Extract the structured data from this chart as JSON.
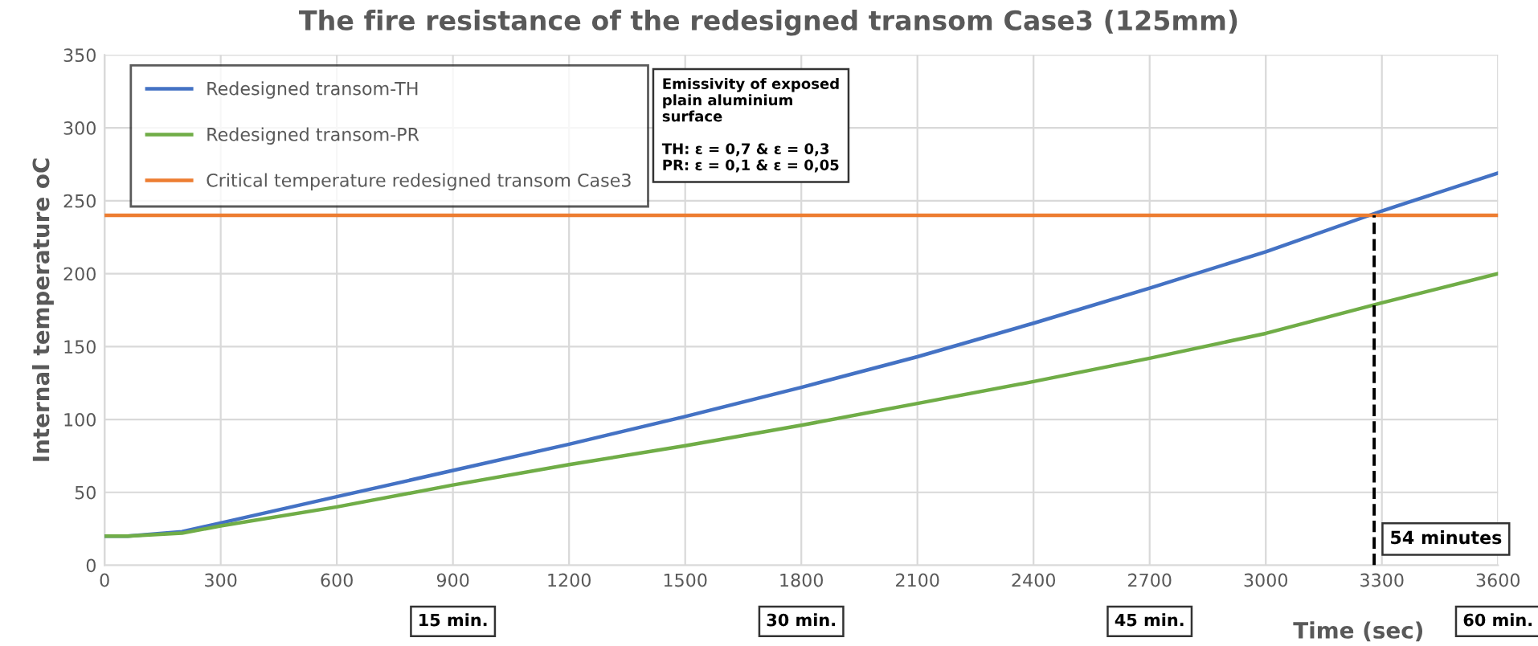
{
  "chart_data": {
    "type": "line",
    "title": "The fire resistance of the redesigned transom Case3 (125mm)",
    "xlabel": "Time (sec)",
    "ylabel": "Internal temperature oC",
    "xlim": [
      0,
      3600
    ],
    "xticks": [
      0,
      300,
      600,
      900,
      1200,
      1500,
      1800,
      2100,
      2400,
      2700,
      3000,
      3300,
      3600
    ],
    "ylim": [
      0,
      350
    ],
    "yticks": [
      0,
      50,
      100,
      150,
      200,
      250,
      300,
      350
    ],
    "grid": true,
    "legend": "top left",
    "series": [
      {
        "name": "Redesigned transom-TH",
        "color": "#4472c4",
        "x": [
          0,
          60,
          200,
          300,
          600,
          900,
          1200,
          1500,
          1800,
          2100,
          2400,
          2700,
          3000,
          3300,
          3600
        ],
        "values": [
          20,
          20,
          23,
          29,
          47,
          65,
          83,
          102,
          122,
          143,
          166,
          190,
          215,
          243,
          269
        ]
      },
      {
        "name": "Redesigned transom-PR",
        "color": "#70ad47",
        "x": [
          0,
          60,
          200,
          300,
          600,
          900,
          1200,
          1500,
          1800,
          2100,
          2400,
          2700,
          3000,
          3300,
          3600
        ],
        "values": [
          20,
          20,
          22,
          27,
          40,
          55,
          69,
          82,
          96,
          111,
          126,
          142,
          159,
          180,
          200
        ]
      },
      {
        "name": "Critical temperature redesigned transom Case3",
        "color": "#ed7d31",
        "x": [
          0,
          3600
        ],
        "values": [
          240,
          240
        ]
      },
      {
        "color": "#000000",
        "line_style": "dashed",
        "x": [
          3280,
          3280
        ],
        "values": [
          0,
          240
        ]
      }
    ],
    "annotations": [
      {
        "text": "54 minutes",
        "x": 3280,
        "y": 18
      },
      "Emissivity of exposed\nplain aluminium\nsurface\n\nTH: ε = 0,7 & ε = 0,3\nPR: ε = 0,1 & ε = 0,05",
      "15 min.",
      "30 min.",
      "45 min.",
      "60 min."
    ]
  }
}
